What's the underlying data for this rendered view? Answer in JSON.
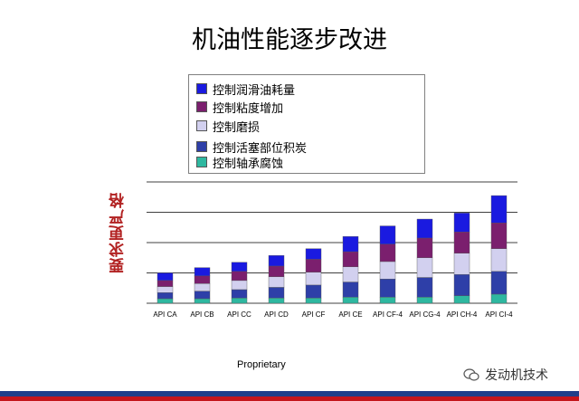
{
  "title": "机油性能逐步改进",
  "footer_text": "Proprietary",
  "brand": "发动机技术",
  "chart_data": {
    "type": "bar",
    "stacked": true,
    "ylabel": "要求更严格",
    "categories": [
      "API CA",
      "API CB",
      "API CC",
      "API CD",
      "API CF",
      "API CE",
      "API CF-4",
      "API CG-4",
      "API CH-4",
      "API CI-4"
    ],
    "ylim": [
      0,
      8
    ],
    "grid": true,
    "legend_position": "top-center",
    "series": [
      {
        "name": "控制轴承腐蚀",
        "color": "#2eb8a0",
        "values": [
          0.3,
          0.3,
          0.35,
          0.35,
          0.35,
          0.4,
          0.4,
          0.4,
          0.5,
          0.6
        ]
      },
      {
        "name": "控制活塞部位积炭",
        "color": "#2e3fa8",
        "values": [
          0.4,
          0.5,
          0.55,
          0.7,
          0.85,
          1.0,
          1.2,
          1.3,
          1.4,
          1.5
        ]
      },
      {
        "name": "控制磨损",
        "color": "#d2d0ef",
        "values": [
          0.4,
          0.5,
          0.6,
          0.7,
          0.85,
          1.0,
          1.15,
          1.3,
          1.4,
          1.5
        ]
      },
      {
        "name": "控制粘度增加",
        "color": "#7b1f6e",
        "values": [
          0.4,
          0.5,
          0.6,
          0.7,
          0.85,
          1.0,
          1.15,
          1.3,
          1.4,
          1.7
        ]
      },
      {
        "name": "控制润滑油耗量",
        "color": "#1a1ae0",
        "values": [
          0.5,
          0.55,
          0.6,
          0.7,
          0.7,
          1.0,
          1.2,
          1.25,
          1.25,
          1.8
        ]
      }
    ],
    "legend_order": [
      "控制润滑油耗量",
      "控制粘度增加",
      "控制磨损",
      "控制活塞部位积炭",
      "控制轴承腐蚀"
    ]
  }
}
